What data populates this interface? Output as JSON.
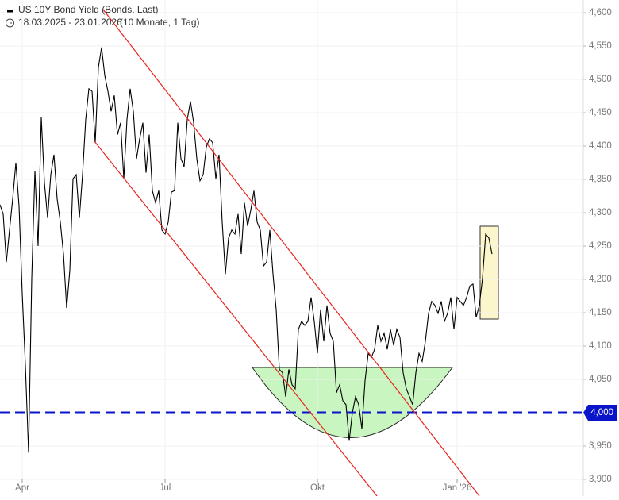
{
  "chart_data": {
    "type": "line",
    "title": "US 10Y Bond Yield (Bonds, Last)",
    "subtitle": "18.03.2025 - 23.01.2026",
    "period": "(10 Monate, 1 Tag)",
    "categories": [
      null,
      null,
      null,
      null,
      null,
      null,
      null,
      "Apr",
      null,
      null,
      null,
      null,
      null,
      null,
      null,
      null,
      null,
      null,
      null,
      null,
      null,
      null,
      null,
      null,
      null,
      null,
      null,
      null,
      null,
      null,
      null,
      null,
      null,
      null,
      null,
      null,
      null,
      null,
      null,
      null,
      null,
      null,
      null,
      null,
      null,
      null,
      null,
      null,
      null,
      null,
      null,
      null,
      "Jul",
      null,
      null,
      null,
      null,
      null,
      null,
      null,
      null,
      null,
      null,
      null,
      null,
      null,
      null,
      null,
      null,
      null,
      null,
      null,
      null,
      null,
      null,
      null,
      null,
      null,
      null,
      null,
      null,
      null,
      null,
      null,
      null,
      null,
      null,
      null,
      null,
      null,
      null,
      null,
      null,
      null,
      null,
      null,
      null,
      null,
      null,
      null,
      "Okt",
      null,
      null,
      null,
      null,
      null,
      null,
      null,
      null,
      null,
      null,
      null,
      null,
      null,
      null,
      null,
      null,
      null,
      null,
      null,
      null,
      null,
      null,
      null,
      null,
      null,
      null,
      null,
      null,
      null,
      null,
      null,
      null,
      null,
      null,
      null,
      null,
      null,
      null,
      null,
      null,
      null,
      null,
      null,
      "Jan '26",
      null,
      null,
      null,
      null,
      null,
      null,
      null,
      null,
      null,
      null,
      null
    ],
    "series": [
      {
        "name": "US 10Y Bond Yield (Bonds, Last)",
        "color": "#000000",
        "values": [
          4.312,
          4.298,
          4.226,
          4.274,
          4.321,
          4.375,
          4.31,
          4.179,
          4.071,
          3.94,
          4.202,
          4.363,
          4.25,
          4.443,
          4.345,
          4.292,
          4.357,
          4.387,
          4.321,
          4.286,
          4.238,
          4.157,
          4.214,
          4.351,
          4.357,
          4.292,
          4.357,
          4.44,
          4.486,
          4.482,
          4.405,
          4.518,
          4.548,
          4.506,
          4.482,
          4.452,
          4.476,
          4.417,
          4.435,
          4.351,
          4.44,
          4.486,
          4.452,
          4.381,
          4.411,
          4.435,
          4.36,
          4.417,
          4.333,
          4.315,
          4.333,
          4.274,
          4.268,
          4.286,
          4.331,
          4.333,
          4.435,
          4.381,
          4.369,
          4.44,
          4.467,
          4.435,
          4.381,
          4.348,
          4.357,
          4.399,
          4.411,
          4.405,
          4.351,
          4.387,
          4.286,
          4.208,
          4.262,
          4.274,
          4.268,
          4.298,
          4.238,
          4.315,
          4.28,
          4.304,
          4.333,
          4.286,
          4.274,
          4.22,
          4.226,
          4.274,
          4.208,
          4.155,
          4.065,
          4.06,
          4.024,
          4.065,
          4.042,
          4.036,
          4.125,
          4.137,
          4.131,
          4.137,
          4.173,
          4.137,
          4.089,
          4.155,
          4.107,
          4.161,
          4.119,
          4.107,
          4.03,
          4.042,
          4.018,
          4.012,
          3.958,
          4.0,
          4.024,
          4.012,
          3.976,
          4.048,
          4.089,
          4.083,
          4.095,
          4.131,
          4.107,
          4.119,
          4.095,
          4.125,
          4.101,
          4.125,
          4.113,
          4.06,
          4.036,
          4.024,
          4.012,
          4.06,
          4.089,
          4.077,
          4.107,
          4.149,
          4.167,
          4.161,
          4.149,
          4.167,
          4.137,
          4.149,
          4.173,
          4.125,
          4.173,
          4.167,
          4.161,
          4.173,
          4.19,
          4.193,
          4.143,
          4.161,
          4.202,
          4.268,
          4.262,
          4.238
        ]
      }
    ],
    "ylim": [
      3.9,
      4.6
    ],
    "yticks": [
      {
        "value": 4.6,
        "label": "4,600"
      },
      {
        "value": 4.55,
        "label": "4,550"
      },
      {
        "value": 4.5,
        "label": "4,500"
      },
      {
        "value": 4.45,
        "label": "4,450"
      },
      {
        "value": 4.4,
        "label": "4,400"
      },
      {
        "value": 4.35,
        "label": "4,350"
      },
      {
        "value": 4.3,
        "label": "4,300"
      },
      {
        "value": 4.25,
        "label": "4,250"
      },
      {
        "value": 4.2,
        "label": "4,200"
      },
      {
        "value": 4.15,
        "label": "4,150"
      },
      {
        "value": 4.1,
        "label": "4,100"
      },
      {
        "value": 4.05,
        "label": "4,050"
      },
      {
        "value": 4.0,
        "label": "4,000"
      },
      {
        "value": 3.95,
        "label": "3,950"
      },
      {
        "value": 3.9,
        "label": "3,900"
      }
    ],
    "grid": true,
    "level_line": {
      "value": 4.0,
      "label": "4,000",
      "color": "#0a14c8"
    }
  }
}
